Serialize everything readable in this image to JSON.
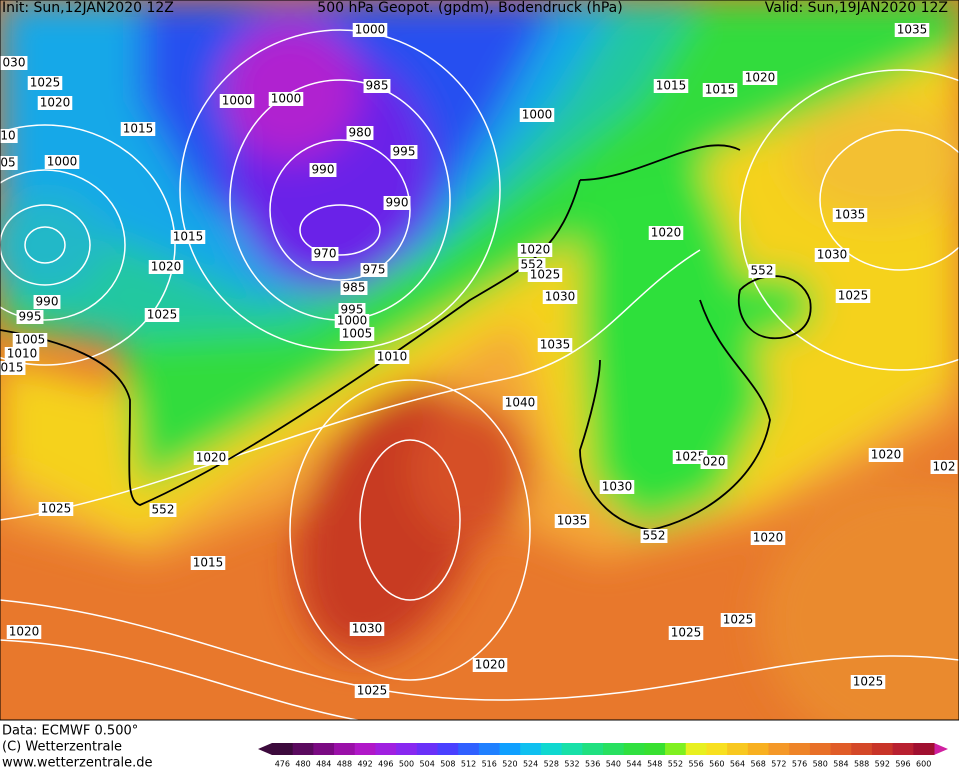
{
  "header": {
    "init": "Init: Sun,12JAN2020 12Z",
    "title": "500 hPa Geopot. (gpdm), Bodendruck (hPa)",
    "valid": "Valid: Sun,19JAN2020 12Z"
  },
  "map": {
    "isobar_labels": [
      "1000",
      "030",
      "1025",
      "1020",
      "1000",
      "1000",
      "985",
      "1015",
      "1015",
      "1020",
      "1035",
      "1015",
      "980",
      "995",
      "1000",
      "10",
      "05",
      "1000",
      "990",
      "990",
      "1035",
      "1015",
      "970",
      "975",
      "1020",
      "552",
      "1025",
      "1020",
      "1030",
      "552",
      "1025",
      "1020",
      "985",
      "1030",
      "990",
      "995",
      "995",
      "1025",
      "1000",
      "1005",
      "1005",
      "1035",
      "1010",
      "015",
      "1010",
      "1040",
      "1025",
      "020",
      "1020",
      "102",
      "1020",
      "1030",
      "1025",
      "552",
      "1035",
      "552",
      "1020",
      "1015",
      "1020",
      "1030",
      "1025",
      "1025",
      "1020",
      "1025",
      "1025"
    ]
  },
  "footer": {
    "data": "Data: ECMWF   0.500°",
    "copyright": "(C) Wetterzentrale",
    "url": "www.wetterzentrale.de"
  },
  "colorbar": {
    "labels": [
      476,
      480,
      484,
      488,
      492,
      496,
      500,
      504,
      508,
      512,
      516,
      520,
      524,
      528,
      532,
      536,
      540,
      544,
      548,
      552,
      556,
      560,
      564,
      568,
      572,
      576,
      580,
      584,
      588,
      592,
      596,
      600
    ]
  }
}
